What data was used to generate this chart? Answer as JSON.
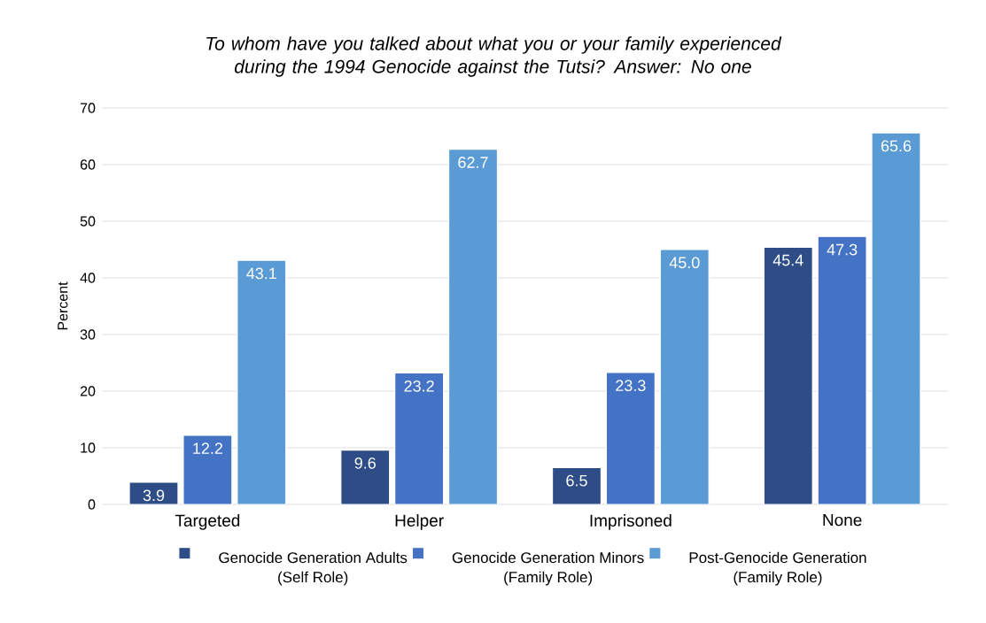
{
  "chart_data": {
    "type": "bar",
    "title": "To whom have you talked about what you or your family experienced during the 1994 Genocide against the Tutsi? Answer: No one",
    "ylabel": "Percent",
    "categories": [
      "Targeted",
      "Helper",
      "Imprisoned",
      "None"
    ],
    "series": [
      {
        "name": "Genocide Generation Adults (Self Role)",
        "color": "#2e4d87",
        "values": [
          3.9,
          9.6,
          6.5,
          45.4
        ],
        "value_labels": [
          "3.9",
          "9.6",
          "6.5",
          "45.4"
        ]
      },
      {
        "name": "Genocide Generation Minors (Family Role)",
        "color": "#4472c4",
        "values": [
          12.2,
          23.2,
          23.3,
          47.3
        ],
        "value_labels": [
          "12.2",
          "23.2",
          "23.3",
          "47.3"
        ]
      },
      {
        "name": "Post-Genocide Generation (Family Role)",
        "color": "#5b9bd5",
        "values": [
          43.1,
          62.7,
          45.0,
          65.6
        ],
        "value_labels": [
          "43.1",
          "62.7",
          "45.0",
          "65.6"
        ]
      }
    ],
    "ylim": [
      0,
      70
    ],
    "yticks": [
      0,
      10,
      20,
      30,
      40,
      50,
      60,
      70
    ],
    "grid": "y",
    "legend": "bottom"
  }
}
